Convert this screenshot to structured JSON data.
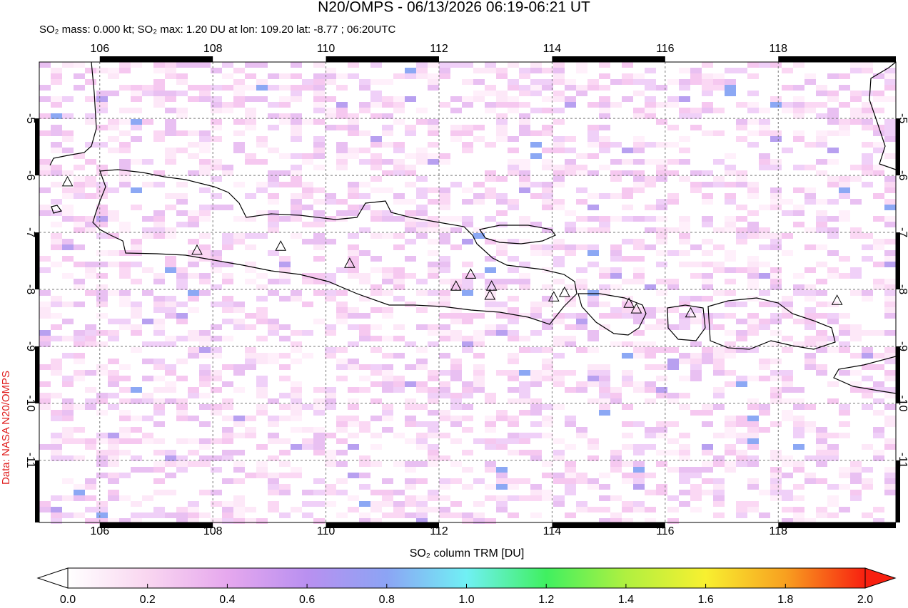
{
  "chart_data": {
    "type": "map",
    "title": "N20/OMPS - 06/13/2026 06:19-06:21 UT",
    "subtitle": "SO₂ mass: 0.000 kt; SO₂ max: 1.20 DU at lon: 109.20 lat: -8.77 ; 06:20UTC",
    "credit": "Data: NASA N20/OMPS",
    "xlim": [
      104.93,
      120.08
    ],
    "ylim": [
      -12.09,
      -4.01
    ],
    "xticks": [
      106,
      108,
      110,
      112,
      114,
      116,
      118
    ],
    "yticks": [
      -5,
      -6,
      -7,
      -8,
      -9,
      -10,
      -11
    ],
    "grid": true,
    "volcanoes": {
      "lon": [
        105.43,
        107.72,
        109.2,
        110.42,
        112.3,
        112.56,
        112.93,
        112.9,
        114.03,
        114.22,
        115.36,
        115.49,
        116.45,
        119.04
      ],
      "lat": [
        -6.11,
        -7.31,
        -7.24,
        -7.54,
        -7.94,
        -7.73,
        -7.94,
        -8.1,
        -8.13,
        -8.05,
        -8.24,
        -8.34,
        -8.41,
        -8.19
      ]
    },
    "colorbar": {
      "label": "SO₂ column TRM [DU]",
      "lim": [
        0,
        2
      ],
      "ticks": [
        {
          "value": 0,
          "label": "0.0"
        },
        {
          "value": 0.2,
          "label": "0.2"
        },
        {
          "value": 0.4,
          "label": "0.4"
        },
        {
          "value": 0.6,
          "label": "0.6"
        },
        {
          "value": 0.8,
          "label": "0.8"
        },
        {
          "value": 1,
          "label": "1.0"
        },
        {
          "value": 1.2,
          "label": "1.2"
        },
        {
          "value": 1.4,
          "label": "1.4"
        },
        {
          "value": 1.6,
          "label": "1.6"
        },
        {
          "value": 1.8,
          "label": "1.8"
        },
        {
          "value": 2,
          "label": "2.0"
        }
      ],
      "colors": [
        "#ffffff",
        "#f9d6f0",
        "#e6a8ee",
        "#b990f0",
        "#8ca4f4",
        "#70f0f4",
        "#40f060",
        "#b0f040",
        "#f8f030",
        "#f8a020",
        "#f82010"
      ]
    }
  }
}
